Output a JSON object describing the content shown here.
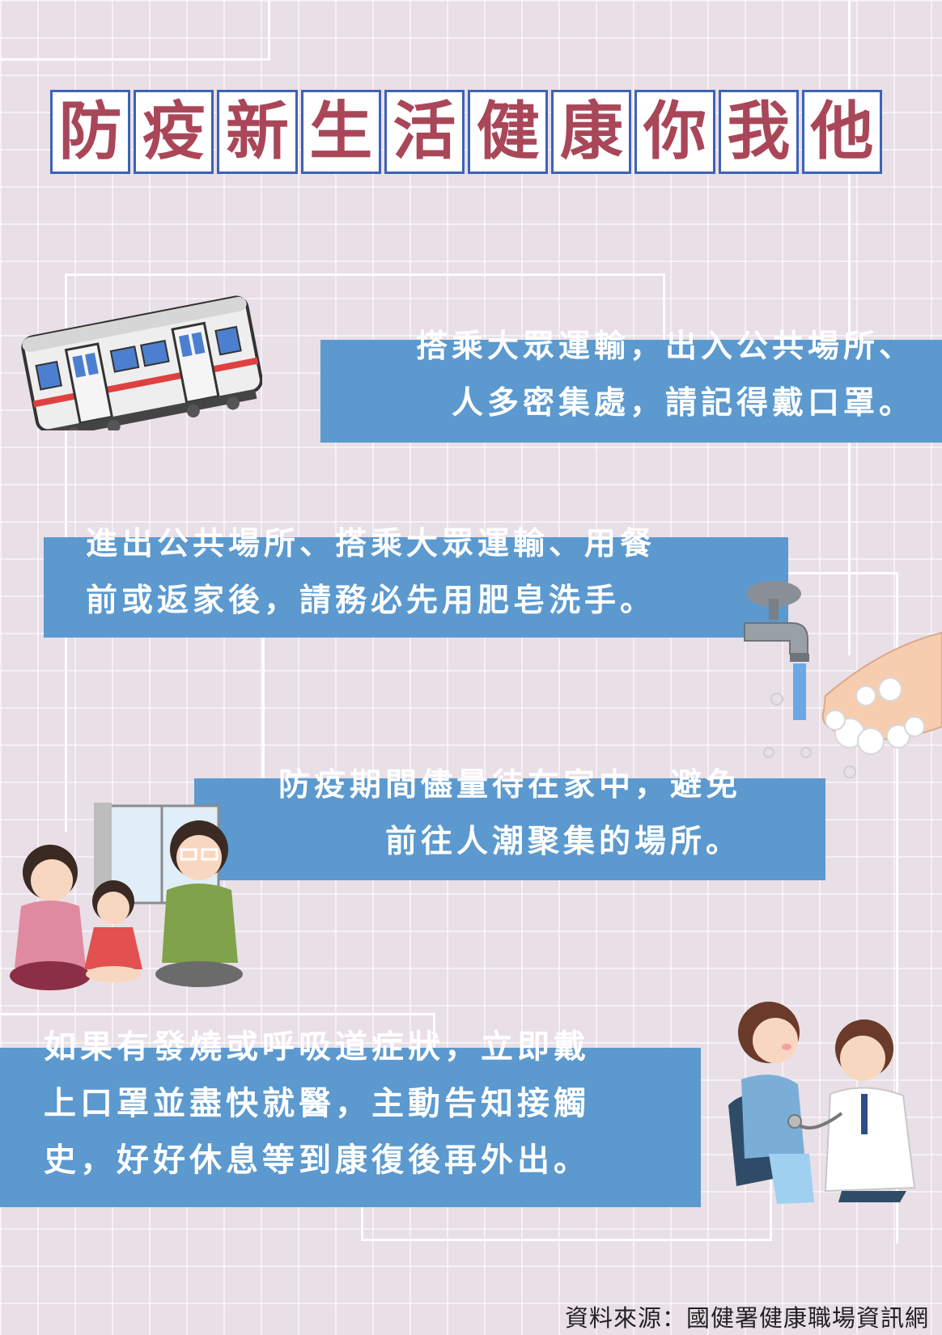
{
  "poster": {
    "title_chars": [
      "防",
      "疫",
      "新",
      "生",
      "活",
      "健",
      "康",
      "你",
      "我",
      "他"
    ],
    "tips": [
      {
        "lines": [
          "搭乘大眾運輸，出入公共場所、",
          "人多密集處，請記得戴口罩。"
        ],
        "illustration": "train-icon"
      },
      {
        "lines": [
          "進出公共場所、搭乘大眾運輸、用餐",
          "前或返家後，請務必先用肥皂洗手。"
        ],
        "illustration": "handwashing-icon"
      },
      {
        "lines": [
          "防疫期間儘量待在家中，避免",
          "前往人潮聚集的場所。"
        ],
        "illustration": "family-at-home-icon"
      },
      {
        "lines": [
          "如果有發燒或呼吸道症狀，立即戴",
          "上口罩並盡快就醫，主動告知接觸",
          "史，好好休息等到康復後再外出。"
        ],
        "illustration": "doctor-visit-icon"
      }
    ],
    "source": "資料來源：國健署健康職場資訊網"
  },
  "colors": {
    "background": "#e9dfe6",
    "title_text": "#a94759",
    "title_border": "#3c63b6",
    "box_blue": "#5b99cf",
    "text_white": "#ffffff"
  }
}
